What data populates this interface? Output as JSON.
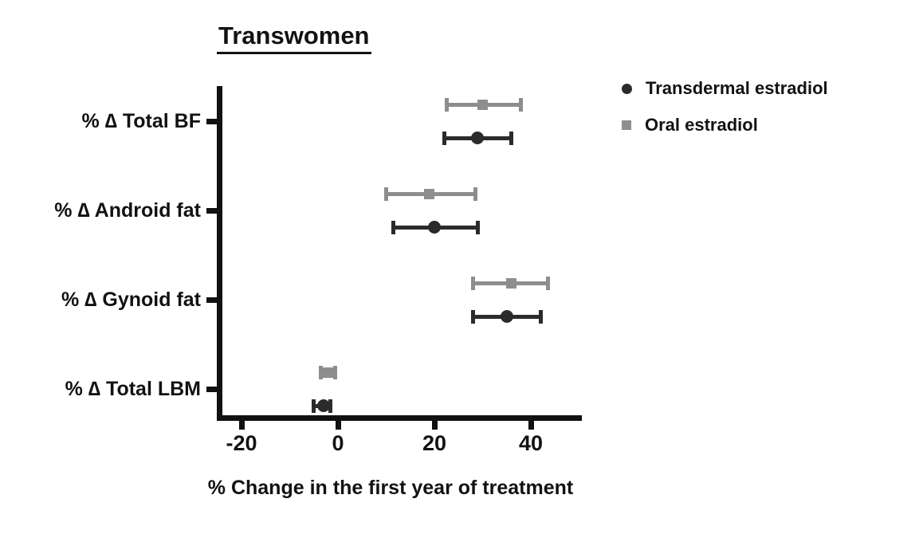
{
  "chart_data": {
    "type": "scatter",
    "title": "Transwomen",
    "xlabel": "% Change in the first year of treatment",
    "x_ticks": [
      -20,
      0,
      20,
      40
    ],
    "x_tick_labels": [
      "-20",
      "0",
      "20",
      "40"
    ],
    "xlim": [
      -25,
      50.5
    ],
    "grid": false,
    "legend_position": "right-top",
    "categories": [
      "% ∆ Total BF",
      "% ∆ Android fat",
      "% ∆ Gynoid fat",
      "% ∆ Total LBM"
    ],
    "series": [
      {
        "name": "Transdermal estradiol",
        "marker": "circle",
        "color": "#2b2b2b",
        "values": [
          29,
          20,
          35,
          -3
        ],
        "error_low": [
          22,
          11.5,
          28,
          -5
        ],
        "error_high": [
          36,
          29,
          42,
          -1.5
        ]
      },
      {
        "name": "Oral estradiol",
        "marker": "square",
        "color": "#8e8e8e",
        "values": [
          30,
          19,
          36,
          -2
        ],
        "error_low": [
          22.5,
          10,
          28,
          -3.5
        ],
        "error_high": [
          38,
          28.5,
          43.5,
          -0.5
        ]
      }
    ]
  }
}
